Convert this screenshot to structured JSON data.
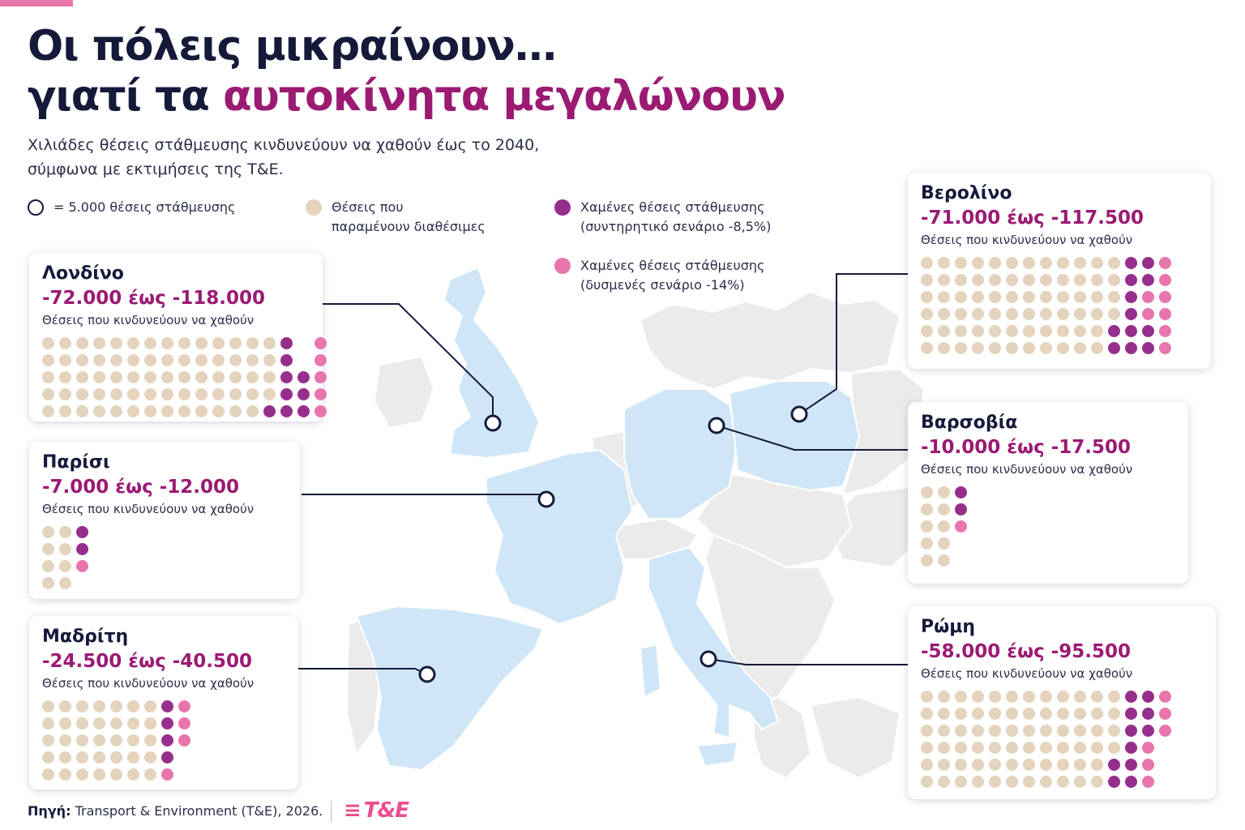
{
  "colors": {
    "title_dark": "#151a3a",
    "accent": "#9b1b73",
    "kept": "#e4d3bd",
    "lost_conservative": "#962f8c",
    "lost_pessimistic": "#e776ad",
    "map_highlight": "#cfe6f7",
    "map_base": "#ebebeb",
    "logo": "#ec4e8f"
  },
  "header": {
    "title_line1": "Οι πόλεις μικραίνουν…",
    "title_line2_plain": "γιατί τα ",
    "title_line2_accent": "αυτοκίνητα μεγαλώνουν",
    "subtitle_line1": "Χιλιάδες θέσεις στάθμευσης κινδυνεύουν να χαθούν έως το 2040,",
    "subtitle_line2": "σύμφωνα με εκτιμήσεις της T&E."
  },
  "legend": {
    "unit": "= 5.000 θέσεις στάθμευσης",
    "kept_line1": "Θέσεις που",
    "kept_line2": "παραμένουν διαθέσιμες",
    "cons_line1": "Χαμένες θέσεις στάθμευσης",
    "cons_line2": "(συντηρητικό σενάριο -8,5%)",
    "pess_line1": "Χαμένες θέσεις στάθμευσης",
    "pess_line2": "(δυσμενές σενάριο -14%)"
  },
  "cities": [
    {
      "id": "london",
      "name": "Λονδίνο",
      "range": "-72.000 έως -118.000",
      "note": "Θέσεις που κινδυνεύουν να χαθούν",
      "cols": 17,
      "dots": "kkkkkkkkkkkkkkcdpkkkkkkkkkkkkkkcdpkkkkkkkkkkkkkkccpkkkkkkkkkkkkkkccpkkkkkkkkkkkkkcccp"
    },
    {
      "id": "paris",
      "name": "Παρίσι",
      "range": "-7.000 έως -12.000",
      "note": "Θέσεις που κινδυνεύουν να χαθούν",
      "cols": 3,
      "dots": "kkckkckkpkk."
    },
    {
      "id": "madrid",
      "name": "Μαδρίτη",
      "range": "-24.500 έως -40.500",
      "note": "Θέσεις που κινδυνεύουν να χαθούν",
      "cols": 9,
      "dots": "kkkkkkkcpkkkkkkkcpkkkkkkkcpkkkkkkkc.kkkkkkkp."
    },
    {
      "id": "berlin",
      "name": "Βερολίνο",
      "range": "-71.000 έως -117.500",
      "note": "Θέσεις που κινδυνεύουν να χαθούν",
      "cols": 15,
      "dots": "kkkkkkkkkkkkccpkkkkkkkkkkkkccpkkkkkkkkkkkkcppkkkkkkkkkkkkcppkkkkkkkkkkkcccpkkkkkkkkkkkcccp"
    },
    {
      "id": "warsaw",
      "name": "Βαρσοβία",
      "range": "-10.000 έως -17.500",
      "note": "Θέσεις που κινδυνεύουν να χαθούν",
      "cols": 3,
      "dots": "kkckkckkpkk.kk."
    },
    {
      "id": "rome",
      "name": "Ρώμη",
      "range": "-58.000 έως -95.500",
      "note": "Θέσεις που κινδυνεύουν να χαθούν",
      "cols": 15,
      "dots": "kkkkkkkkkkkkccpkkkkkkkkkkkkccpkkkkkkkkkkkkccpkkkkkkkkkkkkcp.kkkkkkkkkkkccp.kkkkkkkkkkkccp."
    }
  ],
  "footer": {
    "source_label": "Πηγή:",
    "source_text": "Transport & Environment (T&E), 2026.",
    "logo_text": "T&E"
  }
}
